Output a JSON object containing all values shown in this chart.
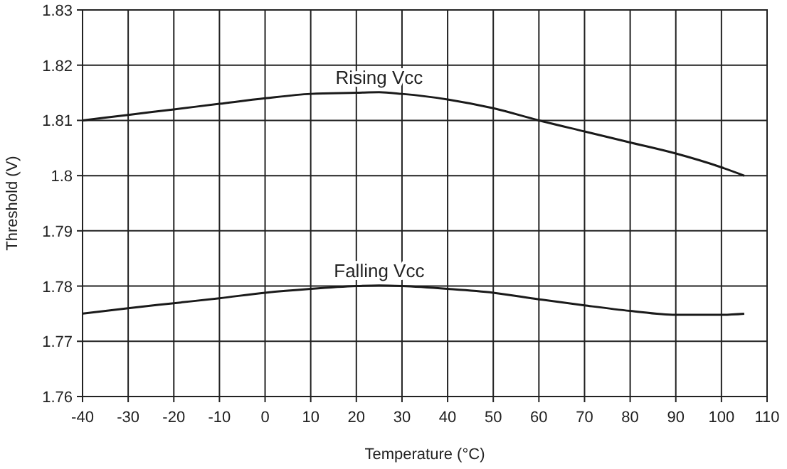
{
  "chart_data": {
    "type": "line",
    "xlabel": "Temperature (°C)",
    "ylabel": "Threshold (V)",
    "xlim": [
      -40,
      110
    ],
    "xticks": [
      -40,
      -30,
      -20,
      -10,
      0,
      10,
      20,
      30,
      40,
      50,
      60,
      70,
      80,
      90,
      100,
      110
    ],
    "ylim": [
      1.76,
      1.83
    ],
    "yticks": [
      1.76,
      1.77,
      1.78,
      1.79,
      {
        "value": 1.8,
        "label": "1.8"
      },
      1.81,
      1.82,
      1.83
    ],
    "grid": true,
    "marker": "none",
    "line_style": "solid",
    "series": [
      {
        "name": "Rising Vcc",
        "color": "#1a1a1a",
        "x": [
          -40,
          -30,
          -20,
          -10,
          0,
          10,
          20,
          25,
          30,
          40,
          50,
          60,
          70,
          80,
          90,
          100,
          105
        ],
        "values": [
          1.81,
          1.811,
          1.812,
          1.813,
          1.814,
          1.8148,
          1.815,
          1.8151,
          1.8148,
          1.8138,
          1.8122,
          1.81,
          1.808,
          1.806,
          1.804,
          1.8015,
          1.8
        ]
      },
      {
        "name": "Falling Vcc",
        "color": "#1a1a1a",
        "x": [
          -40,
          -30,
          -20,
          -10,
          0,
          10,
          20,
          25,
          30,
          40,
          50,
          60,
          70,
          80,
          90,
          100,
          105
        ],
        "values": [
          1.775,
          1.776,
          1.7769,
          1.7778,
          1.7788,
          1.7795,
          1.78,
          1.7801,
          1.78,
          1.7795,
          1.7788,
          1.7776,
          1.7765,
          1.7755,
          1.7748,
          1.7748,
          1.775
        ]
      }
    ]
  }
}
